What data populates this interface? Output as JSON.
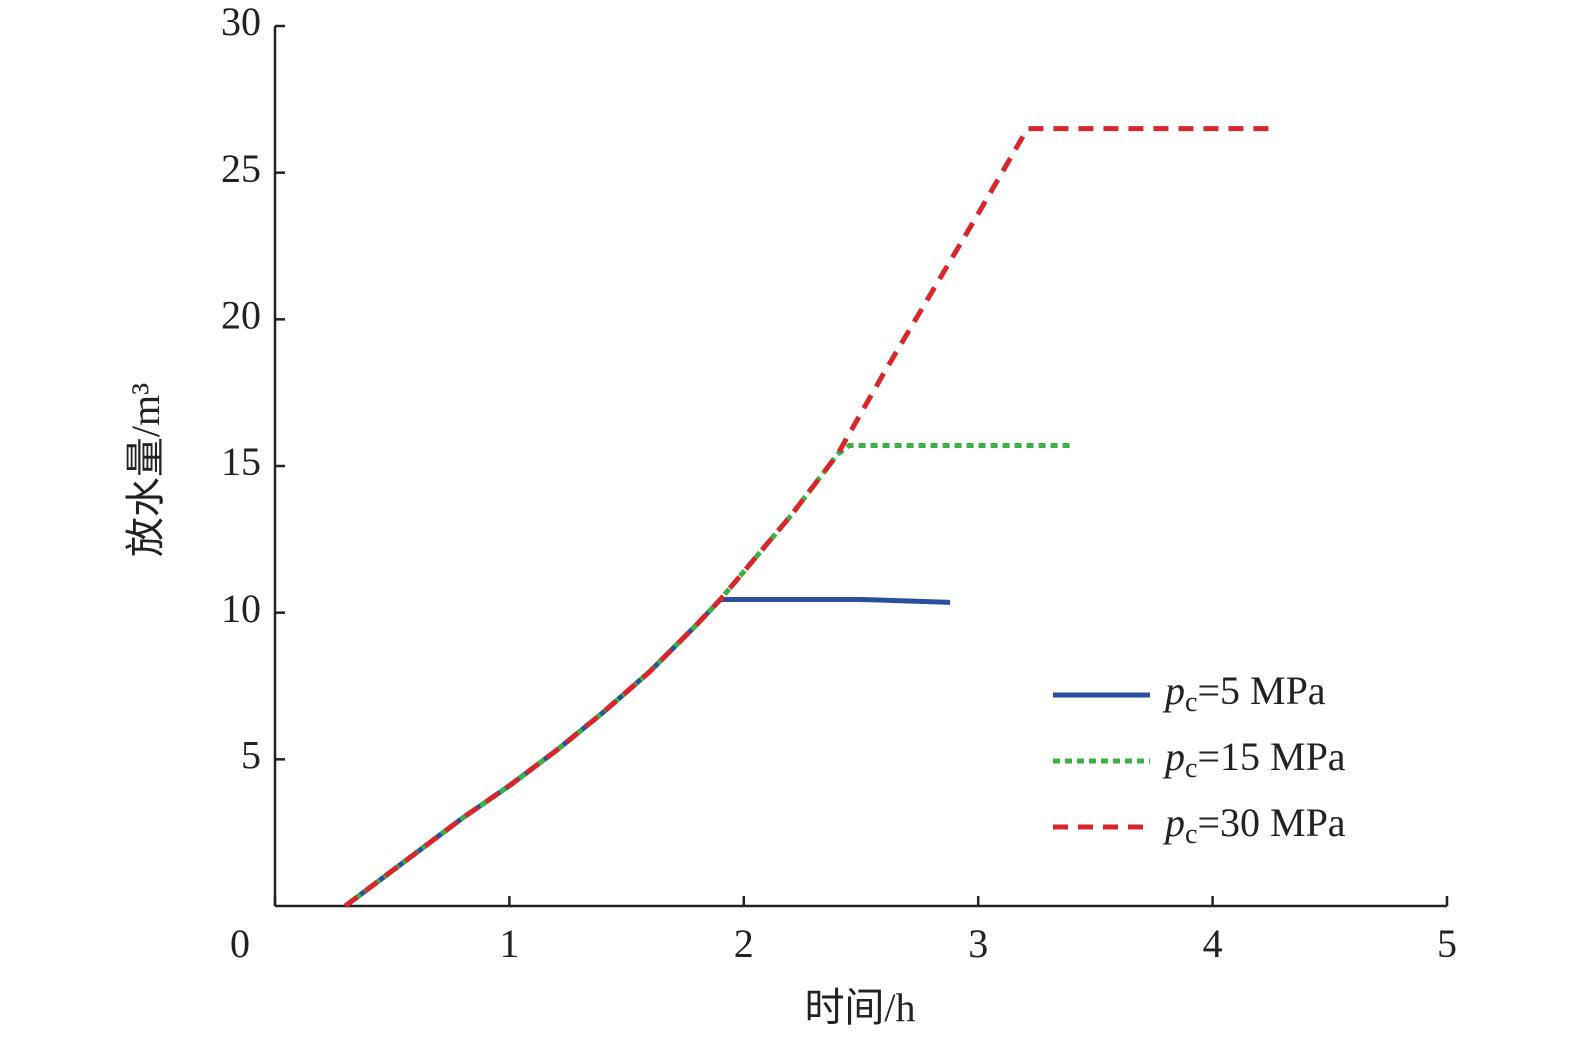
{
  "chart_data": {
    "type": "line",
    "x_label": "时间/h",
    "y_label": "放水量/m³",
    "xlim": [
      0,
      5
    ],
    "xticks": [
      0,
      1,
      2,
      3,
      4,
      5
    ],
    "ylim": [
      0,
      30
    ],
    "yticks": [
      5,
      10,
      15,
      20,
      25,
      30
    ],
    "series": [
      {
        "name": "pc=5 MPa",
        "color": "#2a4fa0",
        "style": "solid",
        "x": [
          0.3,
          0.5,
          0.6,
          0.8,
          1.0,
          1.2,
          1.4,
          1.6,
          1.8,
          1.9,
          2.5,
          2.88
        ],
        "values": [
          0,
          1.2,
          1.8,
          3.0,
          4.1,
          5.3,
          6.6,
          8.0,
          9.6,
          10.45,
          10.45,
          10.35
        ]
      },
      {
        "name": "pc=15 MPa",
        "color": "#3cb043",
        "style": "dotted",
        "x": [
          0.3,
          0.5,
          0.6,
          0.8,
          1.0,
          1.2,
          1.4,
          1.6,
          1.8,
          1.9,
          2.0,
          2.2,
          2.4,
          2.45,
          3.4
        ],
        "values": [
          0,
          1.2,
          1.8,
          3.0,
          4.1,
          5.3,
          6.6,
          8.0,
          9.6,
          10.45,
          11.4,
          13.3,
          15.4,
          15.7,
          15.7
        ]
      },
      {
        "name": "pc=30 MPa",
        "color": "#d9262b",
        "style": "dashed",
        "x": [
          0.3,
          0.5,
          0.6,
          0.8,
          1.0,
          1.2,
          1.4,
          1.6,
          1.8,
          1.9,
          2.0,
          2.2,
          2.4,
          2.6,
          2.8,
          3.0,
          3.21,
          4.25
        ],
        "values": [
          0,
          1.2,
          1.8,
          3.0,
          4.1,
          5.3,
          6.6,
          8.0,
          9.6,
          10.45,
          11.4,
          13.3,
          15.4,
          18.2,
          20.9,
          23.6,
          26.5,
          26.5
        ]
      }
    ]
  }
}
